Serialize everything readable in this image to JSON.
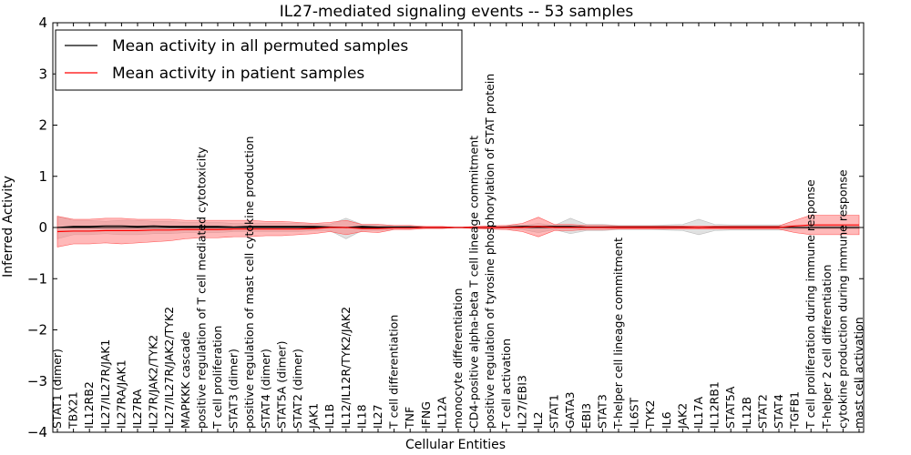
{
  "chart_data": {
    "type": "line",
    "title": "IL27-mediated signaling events -- 53 samples",
    "xlabel": "Cellular Entities",
    "ylabel": "Inferred Activity",
    "ylim": [
      -4,
      4
    ],
    "yticks": [
      -4,
      -3,
      -2,
      -1,
      0,
      1,
      2,
      3,
      4
    ],
    "grid": false,
    "legend_position": "top-left",
    "categories": [
      "STAT1 (dimer)",
      "TBX21",
      "IL12RB2",
      "IL27/IL27R/JAK1",
      "IL27RA/JAK1",
      "IL27RA",
      "IL27R/JAK2/TYK2",
      "IL27/IL27R/JAK2/TYK2",
      "MAPKKK cascade",
      "positive regulation of T cell mediated cytotoxicity",
      "T cell proliferation",
      "STAT3 (dimer)",
      "positive regulation of mast cell cytokine production",
      "STAT4 (dimer)",
      "STAT5A (dimer)",
      "STAT2 (dimer)",
      "JAK1",
      "IL1B",
      "IL12/IL12R/TYK2/JAK2",
      "IL18",
      "IL27",
      "T cell differentiation",
      "TNF",
      "IFNG",
      "IL12A",
      "monocyte differentiation",
      "CD4-positive alpha-beta T cell lineage commitment",
      "positive regulation of tyrosine phosphorylation of STAT protein",
      "T cell activation",
      "IL27/EBI3",
      "IL2",
      "STAT1",
      "GATA3",
      "EBI3",
      "STAT3",
      "T-helper cell lineage commitment",
      "IL6ST",
      "TYK2",
      "IL6",
      "JAK2",
      "IL17A",
      "IL12RB1",
      "STAT5A",
      "IL12B",
      "STAT2",
      "STAT4",
      "TGFB1",
      "T cell proliferation during immune response",
      "T-helper 2 cell differentiation",
      "cytokine production during immune response",
      "mast cell activation"
    ],
    "series": [
      {
        "name": "Mean activity in all permuted samples",
        "color": "#000000",
        "values": [
          0,
          0.02,
          0.02,
          0.03,
          0.03,
          0.02,
          0.03,
          0.02,
          0.02,
          0.02,
          0.02,
          0.01,
          0.02,
          0.02,
          0.02,
          0.02,
          0.02,
          0.01,
          0.0,
          0.02,
          0.01,
          0.01,
          0.01,
          0.0,
          0.0,
          0.0,
          0.0,
          0.0,
          0.01,
          0.02,
          0.02,
          0.02,
          0.02,
          0.01,
          0.01,
          0.01,
          0.01,
          0.01,
          0.01,
          0.01,
          0.0,
          0.01,
          0.01,
          0.01,
          0.01,
          0.01,
          0.0,
          0.0,
          0.0,
          0.0,
          0.0
        ],
        "lower": [
          -0.22,
          -0.14,
          -0.14,
          -0.12,
          -0.14,
          -0.14,
          -0.12,
          -0.12,
          -0.1,
          -0.1,
          -0.1,
          -0.08,
          -0.08,
          -0.08,
          -0.08,
          -0.08,
          -0.06,
          -0.06,
          -0.22,
          -0.06,
          -0.06,
          -0.04,
          -0.03,
          -0.02,
          -0.02,
          0.0,
          -0.02,
          -0.03,
          -0.04,
          -0.04,
          -0.1,
          -0.04,
          -0.12,
          -0.06,
          -0.06,
          -0.04,
          -0.04,
          -0.04,
          -0.05,
          -0.06,
          -0.14,
          -0.06,
          -0.05,
          -0.05,
          -0.05,
          -0.05,
          -0.04,
          -0.03,
          -0.03,
          -0.03,
          -0.03
        ],
        "upper": [
          0.22,
          0.14,
          0.14,
          0.12,
          0.14,
          0.14,
          0.12,
          0.12,
          0.1,
          0.1,
          0.1,
          0.08,
          0.08,
          0.08,
          0.08,
          0.08,
          0.06,
          0.06,
          0.18,
          0.06,
          0.06,
          0.04,
          0.03,
          0.02,
          0.02,
          0.0,
          0.02,
          0.03,
          0.04,
          0.04,
          0.08,
          0.04,
          0.18,
          0.06,
          0.06,
          0.04,
          0.04,
          0.04,
          0.05,
          0.06,
          0.16,
          0.06,
          0.05,
          0.05,
          0.05,
          0.05,
          0.04,
          0.03,
          0.03,
          0.03,
          0.03
        ]
      },
      {
        "name": "Mean activity in patient samples",
        "color": "#ff0000",
        "fill": "#ff7f7f",
        "values": [
          -0.08,
          -0.07,
          -0.07,
          -0.06,
          -0.06,
          -0.06,
          -0.05,
          -0.05,
          -0.04,
          -0.04,
          -0.04,
          -0.03,
          -0.03,
          -0.03,
          -0.03,
          -0.03,
          -0.02,
          0.0,
          0.0,
          -0.02,
          -0.02,
          -0.01,
          -0.01,
          0.0,
          0.0,
          0.0,
          0.0,
          0.0,
          0.0,
          0.0,
          0.02,
          0.0,
          0.0,
          0.0,
          0.0,
          0.0,
          0.0,
          0.0,
          0.0,
          0.0,
          0.0,
          0.0,
          0.0,
          0.0,
          0.0,
          0.0,
          0.03,
          0.05,
          0.05,
          0.05,
          0.05
        ],
        "lower": [
          -0.38,
          -0.32,
          -0.32,
          -0.3,
          -0.32,
          -0.3,
          -0.28,
          -0.26,
          -0.22,
          -0.2,
          -0.2,
          -0.18,
          -0.18,
          -0.16,
          -0.16,
          -0.14,
          -0.12,
          -0.08,
          -0.14,
          -0.08,
          -0.1,
          -0.04,
          -0.04,
          -0.02,
          -0.02,
          0.0,
          -0.02,
          -0.03,
          -0.04,
          -0.08,
          -0.18,
          -0.06,
          -0.06,
          -0.04,
          -0.04,
          -0.03,
          -0.03,
          -0.03,
          -0.03,
          -0.03,
          -0.03,
          -0.03,
          -0.03,
          -0.03,
          -0.03,
          -0.03,
          -0.1,
          -0.14,
          -0.14,
          -0.14,
          -0.14
        ],
        "upper": [
          0.22,
          0.16,
          0.16,
          0.18,
          0.18,
          0.16,
          0.16,
          0.16,
          0.14,
          0.14,
          0.14,
          0.14,
          0.14,
          0.12,
          0.12,
          0.1,
          0.08,
          0.1,
          0.14,
          0.06,
          0.06,
          0.04,
          0.04,
          0.02,
          0.02,
          0.0,
          0.02,
          0.03,
          0.04,
          0.08,
          0.2,
          0.06,
          0.06,
          0.04,
          0.04,
          0.03,
          0.03,
          0.03,
          0.03,
          0.03,
          0.03,
          0.03,
          0.03,
          0.03,
          0.03,
          0.03,
          0.14,
          0.24,
          0.24,
          0.24,
          0.24
        ]
      }
    ]
  }
}
